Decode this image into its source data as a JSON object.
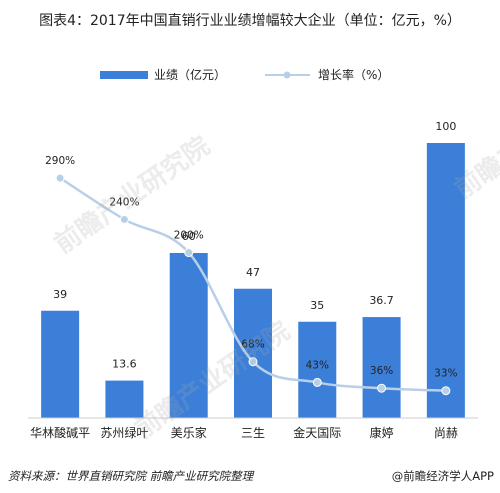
{
  "title": "图表4：2017年中国直销行业业绩增幅较大企业（单位：亿元，%）",
  "source": "资料来源：世界直销研究院 前瞻产业研究院整理",
  "brand": "@前瞻经济学人APP",
  "watermark": "前瞻产业研究院",
  "colors": {
    "bar": "#3b7fd9",
    "line": "#b9cfe8",
    "marker": "#b9cfe8",
    "marker_stroke": "#ffffff"
  },
  "chart_data": {
    "type": "bar",
    "categories": [
      "华林酸碱平",
      "苏州绿叶",
      "美乐家",
      "三生",
      "金天国际",
      "康婷",
      "尚赫"
    ],
    "series": [
      {
        "name": "业绩（亿元）",
        "type": "bar",
        "values": [
          39,
          13.6,
          60,
          47,
          35,
          36.7,
          100
        ],
        "labels": [
          "39",
          "13.6",
          "60",
          "47",
          "35",
          "36.7",
          "100"
        ]
      },
      {
        "name": "增长率（%）",
        "type": "line",
        "values": [
          290,
          240,
          200,
          68,
          43,
          36,
          33
        ],
        "labels": [
          "290%",
          "240%",
          "200%",
          "68%",
          "43%",
          "36%",
          "33%"
        ]
      }
    ],
    "ylim": [
      0,
      100
    ],
    "y2lim": [
      0,
      330
    ],
    "legend": "top-center",
    "grid": false
  }
}
